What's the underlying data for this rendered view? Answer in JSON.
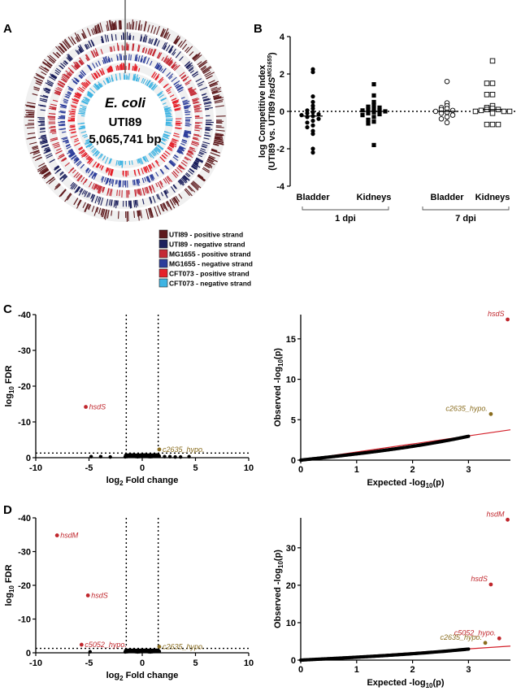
{
  "panels": {
    "A": {
      "letter": "A",
      "organism": "E. coli",
      "strain": "UTI89",
      "genome_size": "5,065,741 bp",
      "legend": [
        {
          "label": "UTI89 - positive strand",
          "color": "#5e1a1d"
        },
        {
          "label": "UTI89 - negative strand",
          "color": "#1b1f5c"
        },
        {
          "label": "MG1655 - positive strand",
          "color": "#c42a35"
        },
        {
          "label": "MG1655 - negative strand",
          "color": "#2c3d9b"
        },
        {
          "label": "CFT073 - positive strand",
          "color": "#e5202a"
        },
        {
          "label": "CFT073 - negative strand",
          "color": "#3fb4e3"
        }
      ]
    },
    "B": {
      "letter": "B"
    },
    "C": {
      "letter": "C"
    },
    "D": {
      "letter": "D"
    }
  },
  "chart_data": [
    {
      "id": "B",
      "type": "scatter",
      "ylabel_line1": "log Competitive Index",
      "ylabel_line2_pre": "(UTI89 vs. UTI89 ",
      "ylabel_line2_italic": "hsdS",
      "ylabel_line2_sup": "MG1655",
      "ylabel_line2_post": ")",
      "ylim": [
        -4,
        4
      ],
      "yticks": [
        "-4",
        "-2",
        "0",
        "2",
        "4"
      ],
      "ytick_values": [
        -4,
        -2,
        0,
        2,
        4
      ],
      "reference_line": 0,
      "groups": [
        {
          "label": "Bladder",
          "marker": "filled-circle",
          "values": [
            2.25,
            2.1,
            0.8,
            0.5,
            0.3,
            0.15,
            0.05,
            -0.05,
            -0.1,
            -0.15,
            -0.2,
            -0.25,
            -0.3,
            -0.4,
            -0.5,
            -0.6,
            -0.75,
            -0.85,
            -1.05,
            -1.2,
            -2.0,
            -2.2
          ]
        },
        {
          "label": "Kidneys",
          "marker": "filled-square",
          "values": [
            1.45,
            0.85,
            0.5,
            0.35,
            0.25,
            0.2,
            0.15,
            0.1,
            0.05,
            0.05,
            0.0,
            -0.05,
            -0.1,
            -0.15,
            -0.2,
            -0.3,
            -0.45,
            -0.55,
            -0.65,
            -1.8
          ]
        },
        {
          "label": "Bladder",
          "marker": "open-circle",
          "values": [
            1.6,
            0.45,
            0.3,
            0.2,
            0.15,
            0.1,
            0.05,
            0.0,
            -0.05,
            -0.1,
            -0.2,
            -0.3,
            -0.4,
            -0.6
          ]
        },
        {
          "label": "Kidneys",
          "marker": "open-square",
          "values": [
            2.7,
            1.5,
            1.5,
            0.9,
            0.9,
            0.3,
            0.2,
            0.15,
            0.1,
            0.1,
            0.05,
            0.0,
            0.0,
            0.0,
            -0.1,
            -0.7,
            -0.7,
            -0.7
          ]
        }
      ],
      "timepoints": [
        "1 dpi",
        "7 dpi"
      ]
    },
    {
      "id": "C-volcano",
      "type": "scatter",
      "xlabel_pre": "log",
      "xlabel_sub": "2",
      "xlabel_post": " Fold change",
      "ylabel_pre": "log",
      "ylabel_sub": "10",
      "ylabel_post": " FDR",
      "xlim": [
        -10,
        10
      ],
      "ylim": [
        0,
        -40
      ],
      "xticks": [
        "-10",
        "-5",
        "0",
        "5",
        "10"
      ],
      "xtick_values": [
        -10,
        -5,
        0,
        5,
        10
      ],
      "yticks": [
        "-40",
        "-30",
        "-20",
        "-10",
        "0"
      ],
      "ytick_values": [
        -40,
        -30,
        -20,
        -10,
        0
      ],
      "vlines": [
        -1.5,
        1.5
      ],
      "hline": -1.3,
      "labeled": [
        {
          "label": "hsdS",
          "x": -5.3,
          "y": -14.2,
          "color": "#c0272d"
        },
        {
          "label": "c2635_hypo.",
          "x": 1.6,
          "y": -2.3,
          "color": "#8a6d1f"
        }
      ],
      "background": [
        [
          -4.8,
          -0.3
        ],
        [
          -3.9,
          -0.3
        ],
        [
          -3.0,
          -0.2
        ],
        [
          2.1,
          -0.3
        ],
        [
          2.6,
          -0.3
        ],
        [
          3.1,
          -0.2
        ],
        [
          3.6,
          -0.2
        ],
        [
          4.4,
          -0.3
        ]
      ]
    },
    {
      "id": "C-qq",
      "type": "scatter",
      "xlabel_pre": "Expected -log",
      "xlabel_sub": "10",
      "xlabel_post": "(p)",
      "ylabel_pre": "Observed -log",
      "ylabel_sub": "10",
      "ylabel_post": "(p)",
      "xlim": [
        0,
        3.75
      ],
      "ylim": [
        0,
        18
      ],
      "xticks": [
        "0",
        "1",
        "2",
        "3"
      ],
      "xtick_values": [
        0,
        1,
        2,
        3
      ],
      "yticks": [
        "0",
        "5",
        "10",
        "15"
      ],
      "ytick_values": [
        0,
        5,
        10,
        15
      ],
      "ref_line": {
        "x0": 0,
        "y0": 0,
        "x1": 3.75,
        "y1": 3.75
      },
      "labeled": [
        {
          "label": "hsdS",
          "x": 3.7,
          "y": 17.4,
          "color": "#c0272d"
        },
        {
          "label": "c2635_hypo.",
          "x": 3.4,
          "y": 5.7,
          "color": "#8a6d1f"
        }
      ]
    },
    {
      "id": "D-volcano",
      "type": "scatter",
      "xlabel_pre": "log",
      "xlabel_sub": "2",
      "xlabel_post": " Fold change",
      "ylabel_pre": "log",
      "ylabel_sub": "10",
      "ylabel_post": " FDR",
      "xlim": [
        -10,
        10
      ],
      "ylim": [
        0,
        -40
      ],
      "xticks": [
        "-10",
        "-5",
        "0",
        "5",
        "10"
      ],
      "xtick_values": [
        -10,
        -5,
        0,
        5,
        10
      ],
      "yticks": [
        "-40",
        "-30",
        "-20",
        "-10",
        "0"
      ],
      "ytick_values": [
        -40,
        -30,
        -20,
        -10,
        0
      ],
      "vlines": [
        -1.5,
        1.5
      ],
      "hline": -1.3,
      "labeled": [
        {
          "label": "hsdM",
          "x": -8.0,
          "y": -34.8,
          "color": "#c0272d"
        },
        {
          "label": "hsdS",
          "x": -5.1,
          "y": -17.0,
          "color": "#c0272d"
        },
        {
          "label": "c5052_hypo.",
          "x": -5.7,
          "y": -2.4,
          "color": "#c0272d"
        },
        {
          "label": "c2635_hypo.",
          "x": 1.6,
          "y": -1.8,
          "color": "#8a6d1f"
        }
      ],
      "background": [
        [
          -4.9,
          -0.3
        ],
        [
          -1.4,
          -0.4
        ],
        [
          -1.2,
          -0.5
        ],
        [
          1.2,
          -0.5
        ],
        [
          1.4,
          -0.6
        ]
      ]
    },
    {
      "id": "D-qq",
      "type": "scatter",
      "xlabel_pre": "Expected -log",
      "xlabel_sub": "10",
      "xlabel_post": "(p)",
      "ylabel_pre": "Observed -log",
      "ylabel_sub": "10",
      "ylabel_post": "(p)",
      "xlim": [
        0,
        3.75
      ],
      "ylim": [
        0,
        38
      ],
      "xticks": [
        "0",
        "1",
        "2",
        "3"
      ],
      "xtick_values": [
        0,
        1,
        2,
        3
      ],
      "yticks": [
        "0",
        "10",
        "20",
        "30"
      ],
      "ytick_values": [
        0,
        10,
        20,
        30
      ],
      "ref_line": {
        "x0": 0,
        "y0": 0,
        "x1": 3.75,
        "y1": 3.75
      },
      "labeled": [
        {
          "label": "hsdM",
          "x": 3.7,
          "y": 37.5,
          "color": "#c0272d"
        },
        {
          "label": "hsdS",
          "x": 3.4,
          "y": 20.2,
          "color": "#c0272d"
        },
        {
          "label": "c5052_hypo.",
          "x": 3.55,
          "y": 5.8,
          "color": "#c0272d"
        },
        {
          "label": "c2635_hypo.",
          "x": 3.3,
          "y": 4.6,
          "color": "#8a6d1f"
        }
      ]
    }
  ]
}
